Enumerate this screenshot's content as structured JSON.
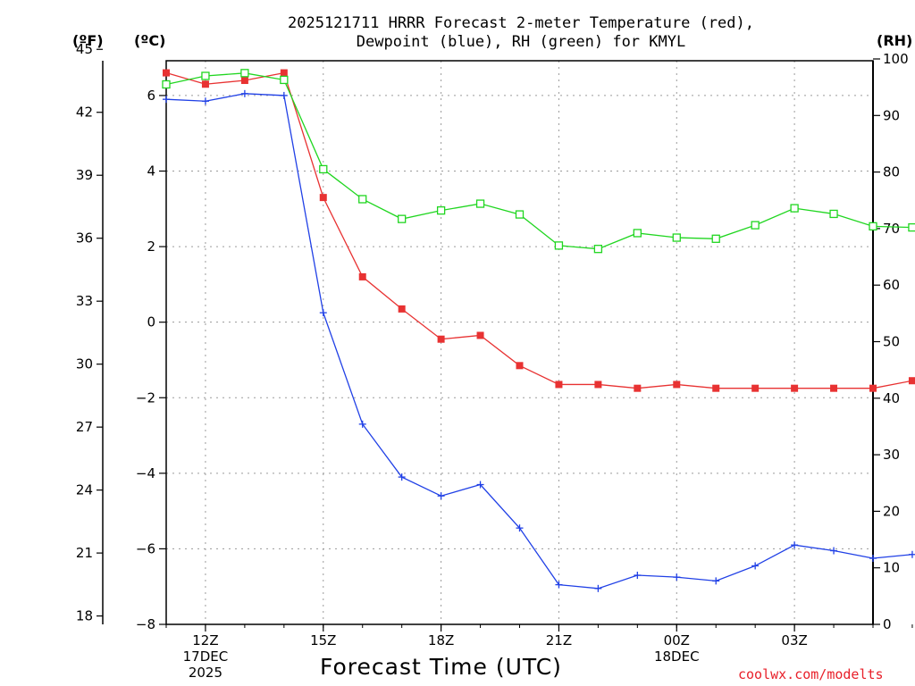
{
  "chart_data": {
    "type": "line",
    "title_line1": "2025121711 HRRR Forecast 2-meter Temperature (red),",
    "title_line2": "Dewpoint (blue), RH (green) for KMYL",
    "xlabel": "Forecast Time (UTC)",
    "left_outer_label": "(ºF)",
    "left_inner_label": "(ºC)",
    "right_label": "(RH)",
    "credit": "coolwx.com/modelts",
    "x_hours": [
      11,
      12,
      13,
      14,
      15,
      16,
      17,
      18,
      19,
      20,
      21,
      22,
      23,
      24,
      25,
      26,
      27,
      28,
      29,
      30
    ],
    "x_ticks": [
      {
        "hour": 12,
        "lines": [
          "12Z",
          "17DEC",
          "2025"
        ]
      },
      {
        "hour": 15,
        "lines": [
          "15Z"
        ]
      },
      {
        "hour": 18,
        "lines": [
          "18Z"
        ]
      },
      {
        "hour": 21,
        "lines": [
          "21Z"
        ]
      },
      {
        "hour": 24,
        "lines": [
          "00Z",
          "18DEC"
        ]
      },
      {
        "hour": 27,
        "lines": [
          "03Z"
        ]
      }
    ],
    "celsius_ticks": [
      "6",
      "4",
      "2",
      "0",
      "−2",
      "−4",
      "−6",
      "−8"
    ],
    "celsius_tick_values": [
      6,
      4,
      2,
      0,
      -2,
      -4,
      -6,
      -8
    ],
    "fahrenheit_ticks": [
      "45",
      "42",
      "39",
      "36",
      "33",
      "30",
      "27",
      "24",
      "21",
      "18"
    ],
    "fahrenheit_tick_values": [
      45,
      42,
      39,
      36,
      33,
      30,
      27,
      24,
      21,
      18
    ],
    "rh_ticks": [
      "100",
      "90",
      "80",
      "70",
      "60",
      "50",
      "40",
      "30",
      "20",
      "10",
      "0"
    ],
    "rh_tick_values": [
      100,
      90,
      80,
      70,
      60,
      50,
      40,
      30,
      20,
      10,
      0
    ],
    "celsius_range": [
      -8,
      7.5
    ],
    "rh_range": [
      0,
      100
    ],
    "series": [
      {
        "name": "2-meter Temperature",
        "color": "#e83232",
        "marker": "filled-square",
        "axis": "celsius",
        "values": [
          6.6,
          6.3,
          6.4,
          6.6,
          3.3,
          1.2,
          0.35,
          -0.45,
          -0.35,
          -1.15,
          -1.65,
          -1.65,
          -1.75,
          -1.65,
          -1.75,
          -1.75,
          -1.75,
          -1.75,
          -1.75,
          -1.55
        ]
      },
      {
        "name": "Dewpoint",
        "color": "#2040e6",
        "marker": "plus",
        "axis": "celsius",
        "values": [
          5.9,
          5.85,
          6.05,
          6.0,
          0.25,
          -2.7,
          -4.1,
          -4.6,
          -4.3,
          -5.45,
          -6.95,
          -7.05,
          -6.7,
          -6.75,
          -6.85,
          -6.45,
          -5.9,
          -6.05,
          -6.25,
          -6.15
        ]
      },
      {
        "name": "RH",
        "color": "#20d620",
        "marker": "open-square",
        "axis": "rh",
        "values": [
          95.5,
          97.0,
          97.5,
          96.3,
          80.5,
          75.2,
          71.7,
          73.2,
          74.4,
          72.5,
          67.0,
          66.4,
          69.2,
          68.4,
          68.2,
          70.6,
          73.6,
          72.6,
          70.4,
          70.2
        ]
      }
    ]
  }
}
